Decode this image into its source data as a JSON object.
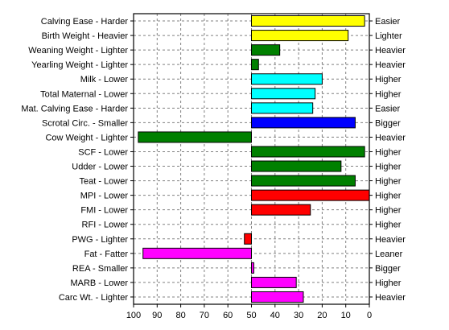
{
  "chart_data": {
    "type": "bar",
    "orientation": "horizontal",
    "x_axis_reversed": true,
    "xlim": [
      100,
      0
    ],
    "x_ticks": [
      100,
      90,
      80,
      70,
      60,
      50,
      40,
      30,
      20,
      10,
      0
    ],
    "baseline": 50,
    "grid": true,
    "rows": [
      {
        "left": "Calving Ease - Harder",
        "right": "Easier",
        "value": 2,
        "color": "#ffff00"
      },
      {
        "left": "Birth Weight - Heavier",
        "right": "Lighter",
        "value": 9,
        "color": "#ffff00"
      },
      {
        "left": "Weaning Weight - Lighter",
        "right": "Heavier",
        "value": 38,
        "color": "#008000"
      },
      {
        "left": "Yearling Weight - Lighter",
        "right": "Heavier",
        "value": 47,
        "color": "#008000"
      },
      {
        "left": "Milk - Lower",
        "right": "Higher",
        "value": 20,
        "color": "#00ffff"
      },
      {
        "left": "Total Maternal - Lower",
        "right": "Higher",
        "value": 23,
        "color": "#00ffff"
      },
      {
        "left": "Mat. Calving Ease - Harder",
        "right": "Easier",
        "value": 24,
        "color": "#00ffff"
      },
      {
        "left": "Scrotal Circ. - Smaller",
        "right": "Bigger",
        "value": 6,
        "color": "#0000ff"
      },
      {
        "left": "Cow Weight - Lighter",
        "right": "Heavier",
        "value": 98,
        "color": "#008000"
      },
      {
        "left": "SCF - Lower",
        "right": "Higher",
        "value": 2,
        "color": "#008000"
      },
      {
        "left": "Udder - Lower",
        "right": "Higher",
        "value": 12,
        "color": "#008000"
      },
      {
        "left": "Teat - Lower",
        "right": "Higher",
        "value": 6,
        "color": "#008000"
      },
      {
        "left": "MPI - Lower",
        "right": "Higher",
        "value": 0,
        "color": "#ff0000"
      },
      {
        "left": "FMI - Lower",
        "right": "Higher",
        "value": 25,
        "color": "#ff0000"
      },
      {
        "left": "RFI - Lower",
        "right": "Higher",
        "value": 50,
        "color": "#ff0000"
      },
      {
        "left": "PWG - Lighter",
        "right": "Heavier",
        "value": 53,
        "color": "#ff0000"
      },
      {
        "left": "Fat - Fatter",
        "right": "Leaner",
        "value": 96,
        "color": "#ff00ff"
      },
      {
        "left": "REA - Smaller",
        "right": "Bigger",
        "value": 49,
        "color": "#ff00ff"
      },
      {
        "left": "MARB - Lower",
        "right": "Higher",
        "value": 31,
        "color": "#ff00ff"
      },
      {
        "left": "Carc Wt. - Lighter",
        "right": "Heavier",
        "value": 28,
        "color": "#ff00ff"
      }
    ]
  }
}
